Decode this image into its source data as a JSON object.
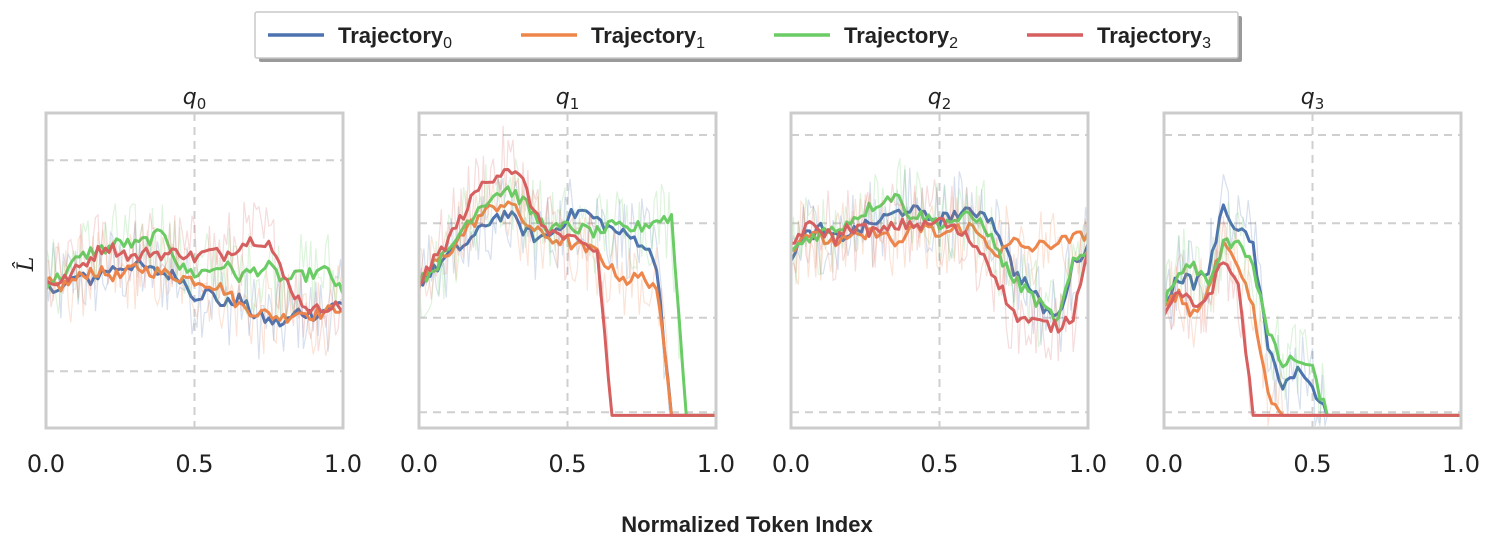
{
  "chart_data": {
    "type": "line",
    "xlabel": "Normalized Token Index",
    "ylabel": "L̂",
    "xlim": [
      0.0,
      1.0
    ],
    "x_ticks": [
      "0.0",
      "0.5",
      "1.0"
    ],
    "x": [
      0.0,
      0.05,
      0.1,
      0.15,
      0.2,
      0.25,
      0.3,
      0.35,
      0.4,
      0.45,
      0.5,
      0.55,
      0.6,
      0.65,
      0.7,
      0.75,
      0.8,
      0.85,
      0.9,
      0.95,
      1.0
    ],
    "legend": {
      "position": "top-center",
      "series": [
        {
          "name": "Trajectory",
          "subscript": "0",
          "color": "#4C72B0"
        },
        {
          "name": "Trajectory",
          "subscript": "1",
          "color": "#EE854A"
        },
        {
          "name": "Trajectory",
          "subscript": "2",
          "color": "#6ACC64"
        },
        {
          "name": "Trajectory",
          "subscript": "3",
          "color": "#D65F5F"
        }
      ]
    },
    "panels": [
      {
        "title": "q",
        "title_subscript": "0",
        "ylim": [
          0,
          1
        ],
        "series": [
          {
            "name": "Trajectory0",
            "values": [
              0.46,
              0.44,
              0.48,
              0.47,
              0.5,
              0.51,
              0.52,
              0.5,
              0.49,
              0.48,
              0.42,
              0.43,
              0.39,
              0.41,
              0.36,
              0.34,
              0.33,
              0.37,
              0.36,
              0.38,
              0.4
            ]
          },
          {
            "name": "Trajectory1",
            "values": [
              0.46,
              0.45,
              0.47,
              0.5,
              0.49,
              0.48,
              0.51,
              0.5,
              0.49,
              0.48,
              0.47,
              0.46,
              0.44,
              0.39,
              0.37,
              0.36,
              0.35,
              0.37,
              0.36,
              0.37,
              0.39
            ]
          },
          {
            "name": "Trajectory2",
            "values": [
              0.46,
              0.48,
              0.53,
              0.56,
              0.57,
              0.59,
              0.58,
              0.6,
              0.62,
              0.51,
              0.49,
              0.5,
              0.52,
              0.48,
              0.5,
              0.51,
              0.47,
              0.48,
              0.49,
              0.5,
              0.42
            ]
          },
          {
            "name": "Trajectory3",
            "values": [
              0.47,
              0.46,
              0.5,
              0.54,
              0.58,
              0.56,
              0.54,
              0.56,
              0.55,
              0.56,
              0.54,
              0.56,
              0.55,
              0.58,
              0.6,
              0.59,
              0.48,
              0.41,
              0.37,
              0.39,
              0.38
            ]
          }
        ]
      },
      {
        "title": "q",
        "title_subscript": "1",
        "ylim": [
          0,
          1
        ],
        "series": [
          {
            "name": "Trajectory0",
            "values": [
              0.46,
              0.5,
              0.55,
              0.58,
              0.62,
              0.67,
              0.68,
              0.63,
              0.6,
              0.62,
              0.67,
              0.69,
              0.66,
              0.63,
              0.61,
              0.59,
              0.52,
              0.04,
              0.04,
              0.04,
              0.04
            ]
          },
          {
            "name": "Trajectory1",
            "values": [
              0.46,
              0.52,
              0.56,
              0.62,
              0.67,
              0.7,
              0.72,
              0.66,
              0.62,
              0.6,
              0.59,
              0.57,
              0.56,
              0.5,
              0.47,
              0.48,
              0.45,
              0.04,
              0.04,
              0.04,
              0.04
            ]
          },
          {
            "name": "Trajectory2",
            "values": [
              0.46,
              0.51,
              0.56,
              0.64,
              0.7,
              0.74,
              0.76,
              0.72,
              0.66,
              0.63,
              0.64,
              0.63,
              0.62,
              0.64,
              0.63,
              0.64,
              0.66,
              0.67,
              0.04,
              0.04,
              0.04
            ]
          },
          {
            "name": "Trajectory3",
            "values": [
              0.46,
              0.53,
              0.6,
              0.68,
              0.76,
              0.8,
              0.83,
              0.78,
              0.66,
              0.62,
              0.6,
              0.58,
              0.56,
              0.04,
              0.04,
              0.04,
              0.04,
              0.04,
              0.04,
              0.04,
              0.04
            ]
          }
        ]
      },
      {
        "title": "q",
        "title_subscript": "2",
        "ylim": [
          0,
          1
        ],
        "series": [
          {
            "name": "Trajectory0",
            "values": [
              0.55,
              0.61,
              0.63,
              0.6,
              0.62,
              0.64,
              0.66,
              0.68,
              0.7,
              0.67,
              0.66,
              0.68,
              0.68,
              0.69,
              0.62,
              0.5,
              0.45,
              0.38,
              0.35,
              0.52,
              0.58
            ]
          },
          {
            "name": "Trajectory1",
            "values": [
              0.57,
              0.62,
              0.6,
              0.59,
              0.6,
              0.61,
              0.63,
              0.58,
              0.62,
              0.64,
              0.61,
              0.63,
              0.64,
              0.6,
              0.55,
              0.59,
              0.57,
              0.58,
              0.59,
              0.6,
              0.62
            ]
          },
          {
            "name": "Trajectory2",
            "values": [
              0.56,
              0.6,
              0.62,
              0.63,
              0.66,
              0.69,
              0.72,
              0.74,
              0.68,
              0.67,
              0.65,
              0.66,
              0.67,
              0.65,
              0.55,
              0.47,
              0.43,
              0.38,
              0.34,
              0.52,
              0.56
            ]
          },
          {
            "name": "Trajectory3",
            "values": [
              0.58,
              0.64,
              0.63,
              0.6,
              0.64,
              0.63,
              0.62,
              0.64,
              0.65,
              0.64,
              0.66,
              0.63,
              0.6,
              0.55,
              0.46,
              0.36,
              0.34,
              0.33,
              0.32,
              0.36,
              0.58
            ]
          }
        ]
      },
      {
        "title": "q",
        "title_subscript": "3",
        "ylim": [
          0,
          1
        ],
        "series": [
          {
            "name": "Trajectory0",
            "values": [
              0.4,
              0.48,
              0.46,
              0.5,
              0.7,
              0.63,
              0.58,
              0.25,
              0.14,
              0.18,
              0.12,
              0.04,
              0.04,
              0.04,
              0.04,
              0.04,
              0.04,
              0.04,
              0.04,
              0.04,
              0.04
            ]
          },
          {
            "name": "Trajectory1",
            "values": [
              0.38,
              0.42,
              0.36,
              0.44,
              0.58,
              0.5,
              0.38,
              0.1,
              0.04,
              0.04,
              0.04,
              0.04,
              0.04,
              0.04,
              0.04,
              0.04,
              0.04,
              0.04,
              0.04,
              0.04,
              0.04
            ]
          },
          {
            "name": "Trajectory2",
            "values": [
              0.4,
              0.49,
              0.52,
              0.45,
              0.58,
              0.6,
              0.52,
              0.3,
              0.2,
              0.22,
              0.18,
              0.04,
              0.04,
              0.04,
              0.04,
              0.04,
              0.04,
              0.04,
              0.04,
              0.04,
              0.04
            ]
          },
          {
            "name": "Trajectory3",
            "values": [
              0.36,
              0.44,
              0.38,
              0.42,
              0.53,
              0.46,
              0.04,
              0.04,
              0.04,
              0.04,
              0.04,
              0.04,
              0.04,
              0.04,
              0.04,
              0.04,
              0.04,
              0.04,
              0.04,
              0.04,
              0.04
            ]
          }
        ]
      }
    ]
  }
}
